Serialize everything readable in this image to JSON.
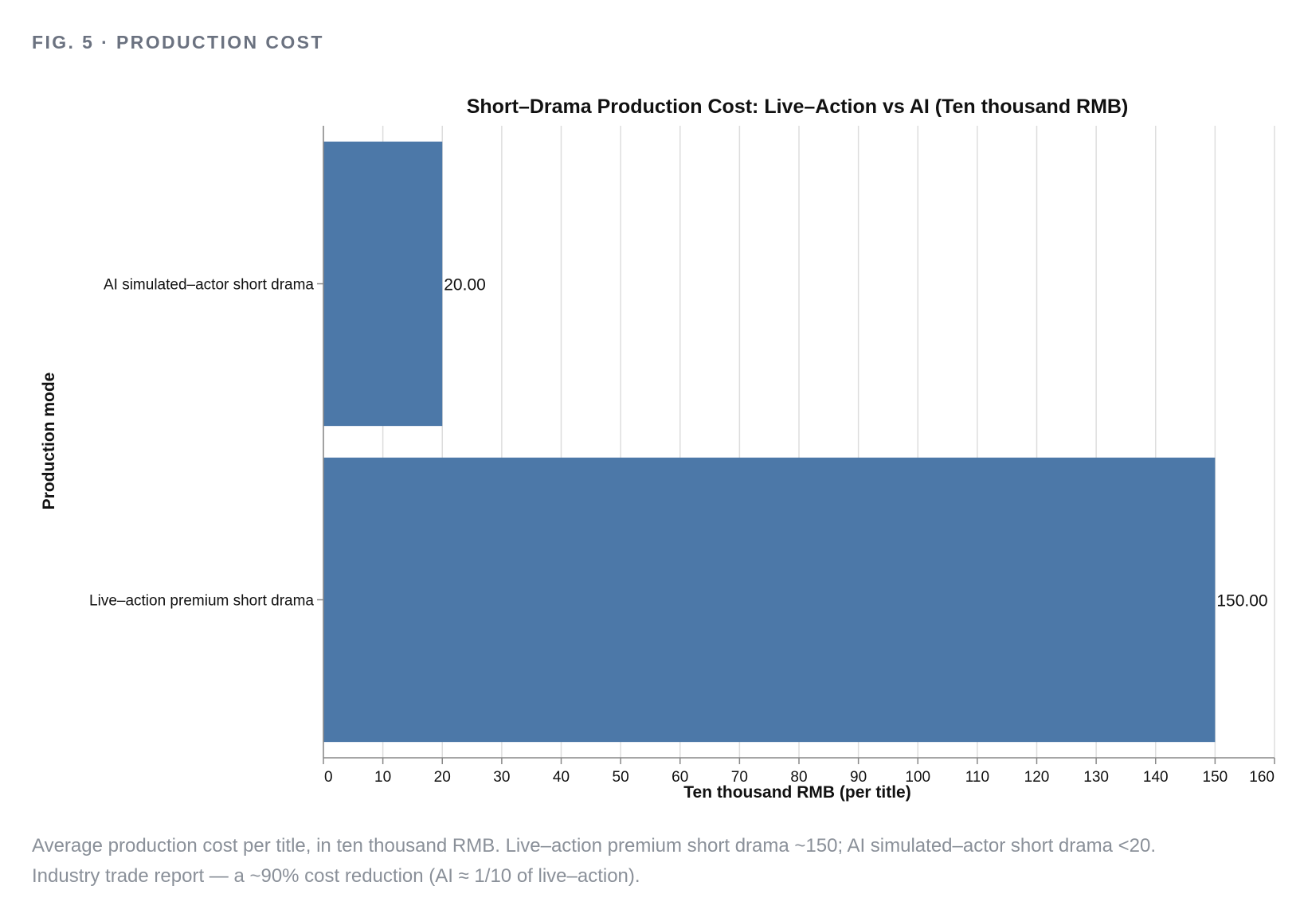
{
  "figure": {
    "label": "FIG. 5 · PRODUCTION COST",
    "caption_line1": "Average production cost per title, in ten thousand RMB. Live–action premium short drama ~150; AI simulated–actor short drama <20.",
    "caption_line2": "Industry trade report — a ~90% cost reduction (AI ≈ 1/10 of live–action)."
  },
  "chart_data": {
    "type": "bar",
    "orientation": "horizontal",
    "title": "Short–Drama Production Cost: Live–Action vs AI (Ten thousand RMB)",
    "xlabel": "Ten thousand RMB (per title)",
    "ylabel": "Production mode",
    "categories": [
      "AI simulated–actor short drama",
      "Live–action premium short drama"
    ],
    "values": [
      20,
      150
    ],
    "data_labels": [
      "20.00",
      "150.00"
    ],
    "xlim": [
      0,
      160
    ],
    "xticks": [
      0,
      10,
      20,
      30,
      40,
      50,
      60,
      70,
      80,
      90,
      100,
      110,
      120,
      130,
      140,
      150,
      160
    ],
    "grid": true,
    "bar_color": "#4c78a8"
  }
}
